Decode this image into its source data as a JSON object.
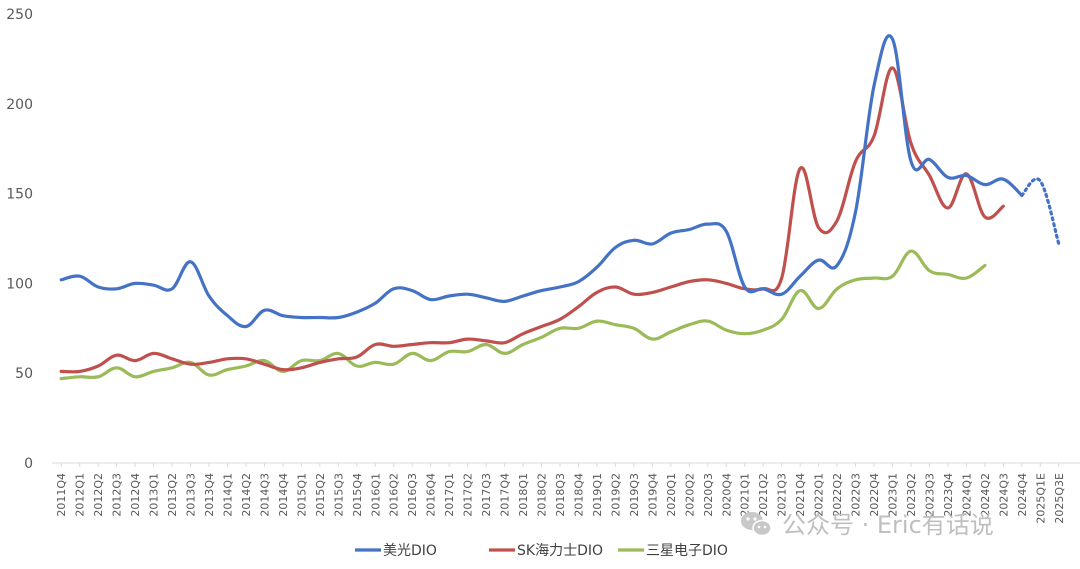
{
  "chart_data": {
    "type": "line",
    "categories": [
      "2011Q4",
      "2012Q1",
      "2012Q2",
      "2012Q3",
      "2012Q4",
      "2013Q1",
      "2013Q2",
      "2013Q3",
      "2013Q4",
      "2014Q1",
      "2014Q2",
      "2014Q3",
      "2014Q4",
      "2015Q1",
      "2015Q2",
      "2015Q3",
      "2015Q4",
      "2016Q1",
      "2016Q2",
      "2016Q3",
      "2016Q4",
      "2017Q1",
      "2017Q2",
      "2017Q3",
      "2017Q4",
      "2018Q1",
      "2018Q2",
      "2018Q3",
      "2018Q4",
      "2019Q1",
      "2019Q2",
      "2019Q3",
      "2019Q4",
      "2020Q1",
      "2020Q2",
      "2020Q3",
      "2020Q4",
      "2021Q1",
      "2021Q2",
      "2021Q3",
      "2021Q4",
      "2022Q1",
      "2022Q2",
      "2022Q3",
      "2022Q4",
      "2023Q1",
      "2023Q2",
      "2023Q3",
      "2023Q4",
      "2024Q1",
      "2024Q2",
      "2024Q3",
      "2024Q4",
      "2025Q1E",
      "2025Q3E"
    ],
    "ylim": [
      0,
      250
    ],
    "yticks": [
      0,
      50,
      100,
      150,
      200,
      250
    ],
    "legend_position": "bottom",
    "grid": false,
    "series": [
      {
        "name": "美光DIO",
        "color": "#4472C4",
        "values": [
          102,
          104,
          98,
          97,
          100,
          99,
          97,
          112,
          93,
          82,
          76,
          85,
          82,
          81,
          81,
          81,
          84,
          89,
          97,
          96,
          91,
          93,
          94,
          92,
          90,
          93,
          96,
          98,
          101,
          109,
          120,
          124,
          122,
          128,
          130,
          133,
          129,
          98,
          97,
          94,
          104,
          113,
          110,
          140,
          210,
          236,
          168,
          169,
          159,
          160,
          155,
          158,
          149,
          null,
          null
        ],
        "projection_start_index": 52,
        "projection_values": [
          null,
          null,
          null,
          null,
          null,
          null,
          null,
          null,
          null,
          null,
          null,
          null,
          null,
          null,
          null,
          null,
          null,
          null,
          null,
          null,
          null,
          null,
          null,
          null,
          null,
          null,
          null,
          null,
          null,
          null,
          null,
          null,
          null,
          null,
          null,
          null,
          null,
          null,
          null,
          null,
          null,
          null,
          null,
          null,
          null,
          null,
          null,
          null,
          null,
          null,
          null,
          null,
          149,
          157,
          122
        ]
      },
      {
        "name": "SK海力士DIO",
        "color": "#C0504D",
        "values": [
          51,
          51,
          54,
          60,
          57,
          61,
          58,
          55,
          56,
          58,
          58,
          55,
          52,
          53,
          56,
          58,
          59,
          66,
          65,
          66,
          67,
          67,
          69,
          68,
          67,
          72,
          76,
          80,
          87,
          95,
          98,
          94,
          95,
          98,
          101,
          102,
          100,
          97,
          97,
          103,
          164,
          131,
          135,
          168,
          182,
          220,
          178,
          160,
          142,
          161,
          137,
          143,
          null,
          null,
          null
        ]
      },
      {
        "name": "三星电子DIO",
        "color": "#9BBB59",
        "values": [
          47,
          48,
          48,
          53,
          48,
          51,
          53,
          56,
          49,
          52,
          54,
          57,
          51,
          57,
          57,
          61,
          54,
          56,
          55,
          61,
          57,
          62,
          62,
          66,
          61,
          66,
          70,
          75,
          75,
          79,
          77,
          75,
          69,
          73,
          77,
          79,
          74,
          72,
          74,
          80,
          96,
          86,
          97,
          102,
          103,
          104,
          118,
          107,
          105,
          103,
          110,
          null,
          null,
          null,
          null
        ]
      }
    ]
  },
  "watermark": {
    "text": "公众号 · Eric有话说",
    "icon": "wechat-icon"
  }
}
